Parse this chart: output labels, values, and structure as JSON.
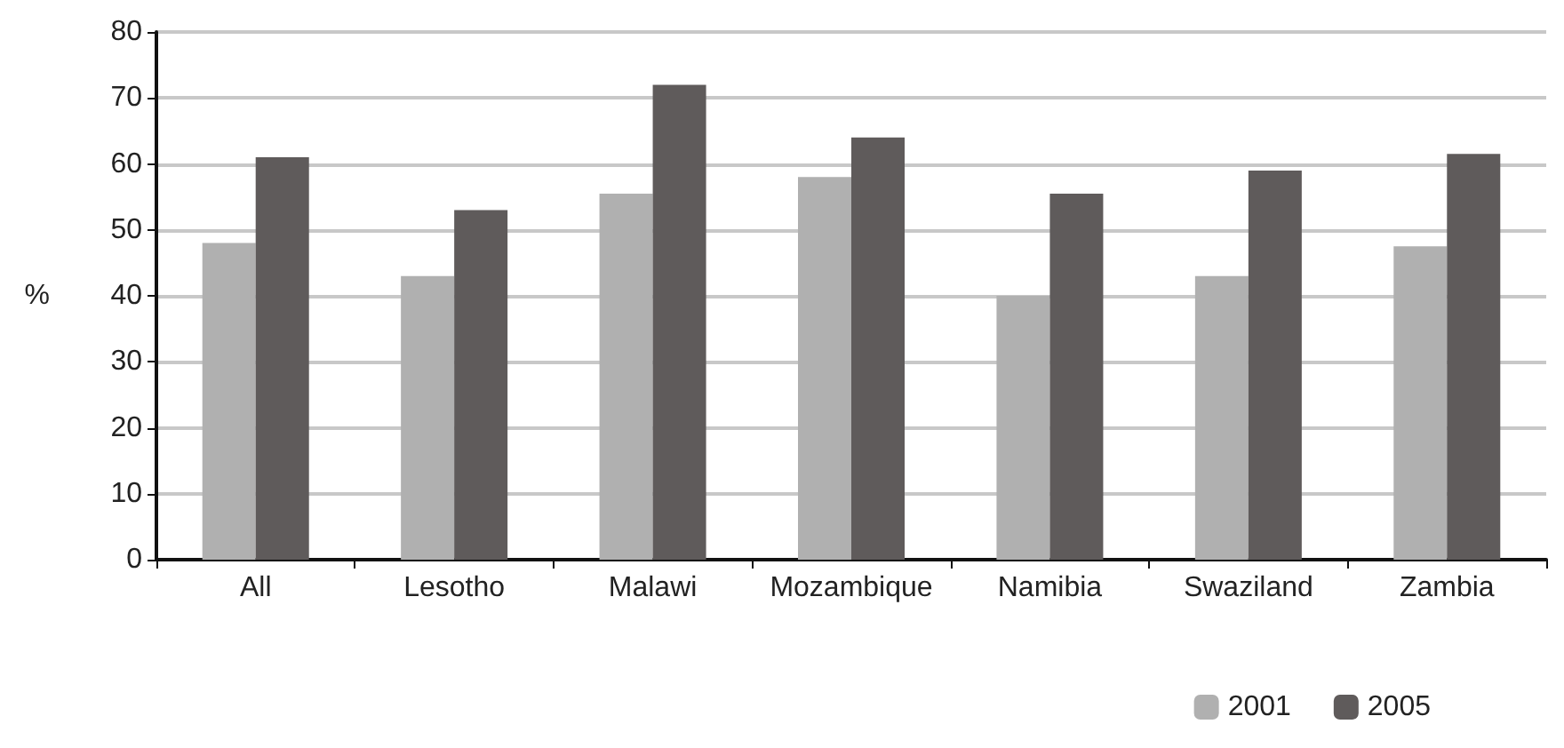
{
  "chart_data": {
    "type": "bar",
    "ylabel": "%",
    "categories": [
      "All",
      "Lesotho",
      "Malawi",
      "Mozambique",
      "Namibia",
      "Swaziland",
      "Zambia"
    ],
    "series": [
      {
        "name": "2001",
        "color": "#b0b0b0",
        "values": [
          48,
          43,
          55.5,
          58,
          40,
          43,
          47.5
        ]
      },
      {
        "name": "2005",
        "color": "#5f5b5b",
        "values": [
          61,
          53,
          72,
          64,
          55.5,
          59,
          61.5
        ]
      }
    ],
    "ylim": [
      0,
      80
    ],
    "yticks": [
      0,
      10,
      20,
      30,
      40,
      50,
      60,
      70,
      80
    ],
    "grid": "y",
    "legend": "bottom right"
  }
}
